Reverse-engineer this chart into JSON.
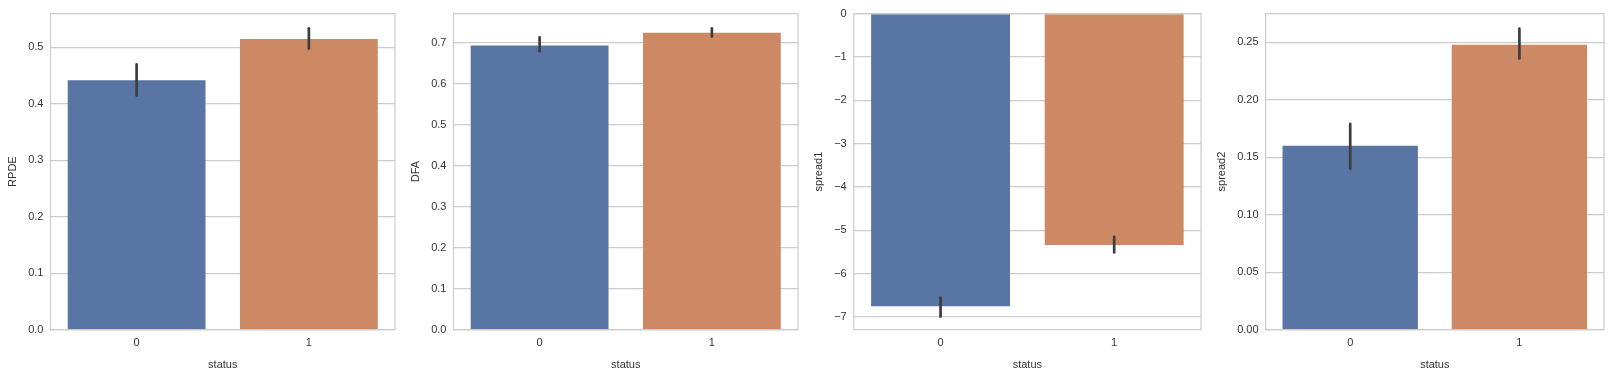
{
  "chart_data": [
    {
      "type": "bar",
      "xlabel": "status",
      "ylabel": "RPDE",
      "categories": [
        "0",
        "1"
      ],
      "values": [
        0.442,
        0.515
      ],
      "colors": [
        "#5875a4",
        "#cc8963"
      ],
      "errors": [
        [
          0.415,
          0.47
        ],
        [
          0.498,
          0.534
        ]
      ],
      "ylim": [
        0,
        0.56
      ],
      "yticks": [
        {
          "value": 0,
          "label": "0.0"
        },
        0.1,
        0.2,
        0.3,
        0.4,
        0.5
      ],
      "grid": "y",
      "legend": false
    },
    {
      "type": "bar",
      "xlabel": "status",
      "ylabel": "DFA",
      "categories": [
        "0",
        "1"
      ],
      "values": [
        0.694,
        0.725
      ],
      "colors": [
        "#5875a4",
        "#cc8963"
      ],
      "errors": [
        [
          0.68,
          0.714
        ],
        [
          0.716,
          0.736
        ]
      ],
      "ylim": [
        0,
        0.772
      ],
      "yticks": [
        {
          "value": 0,
          "label": "0.0"
        },
        0.1,
        0.2,
        0.3,
        0.4,
        0.5,
        0.6,
        0.7
      ],
      "grid": "y",
      "legend": false
    },
    {
      "type": "bar",
      "xlabel": "status",
      "ylabel": "spread1",
      "categories": [
        "0",
        "1"
      ],
      "values": [
        -6.75,
        -5.34
      ],
      "colors": [
        "#5875a4",
        "#cc8963"
      ],
      "errors": [
        [
          -6.99,
          -6.55
        ],
        [
          -5.51,
          -5.15
        ]
      ],
      "ylim": [
        -7.29,
        0
      ],
      "yticks": [
        {
          "value": -7,
          "label": "−7"
        },
        {
          "value": -6,
          "label": "−6"
        },
        {
          "value": -5,
          "label": "−5"
        },
        {
          "value": -4,
          "label": "−4"
        },
        {
          "value": -3,
          "label": "−3"
        },
        {
          "value": -2,
          "label": "−2"
        },
        {
          "value": -1,
          "label": "−1"
        },
        0
      ],
      "grid": "y",
      "legend": false
    },
    {
      "type": "bar",
      "xlabel": "status",
      "ylabel": "spread2",
      "categories": [
        "0",
        "1"
      ],
      "values": [
        0.16,
        0.248
      ],
      "colors": [
        "#5875a4",
        "#cc8963"
      ],
      "errors": [
        [
          0.14,
          0.179
        ],
        [
          0.236,
          0.262
        ]
      ],
      "ylim": [
        0,
        0.275
      ],
      "yticks": [
        {
          "value": 0,
          "label": "0.00"
        },
        0.05,
        {
          "value": 0.1,
          "label": "0.10"
        },
        0.15,
        {
          "value": 0.2,
          "label": "0.20"
        },
        0.25
      ],
      "grid": "y",
      "legend": false
    }
  ]
}
